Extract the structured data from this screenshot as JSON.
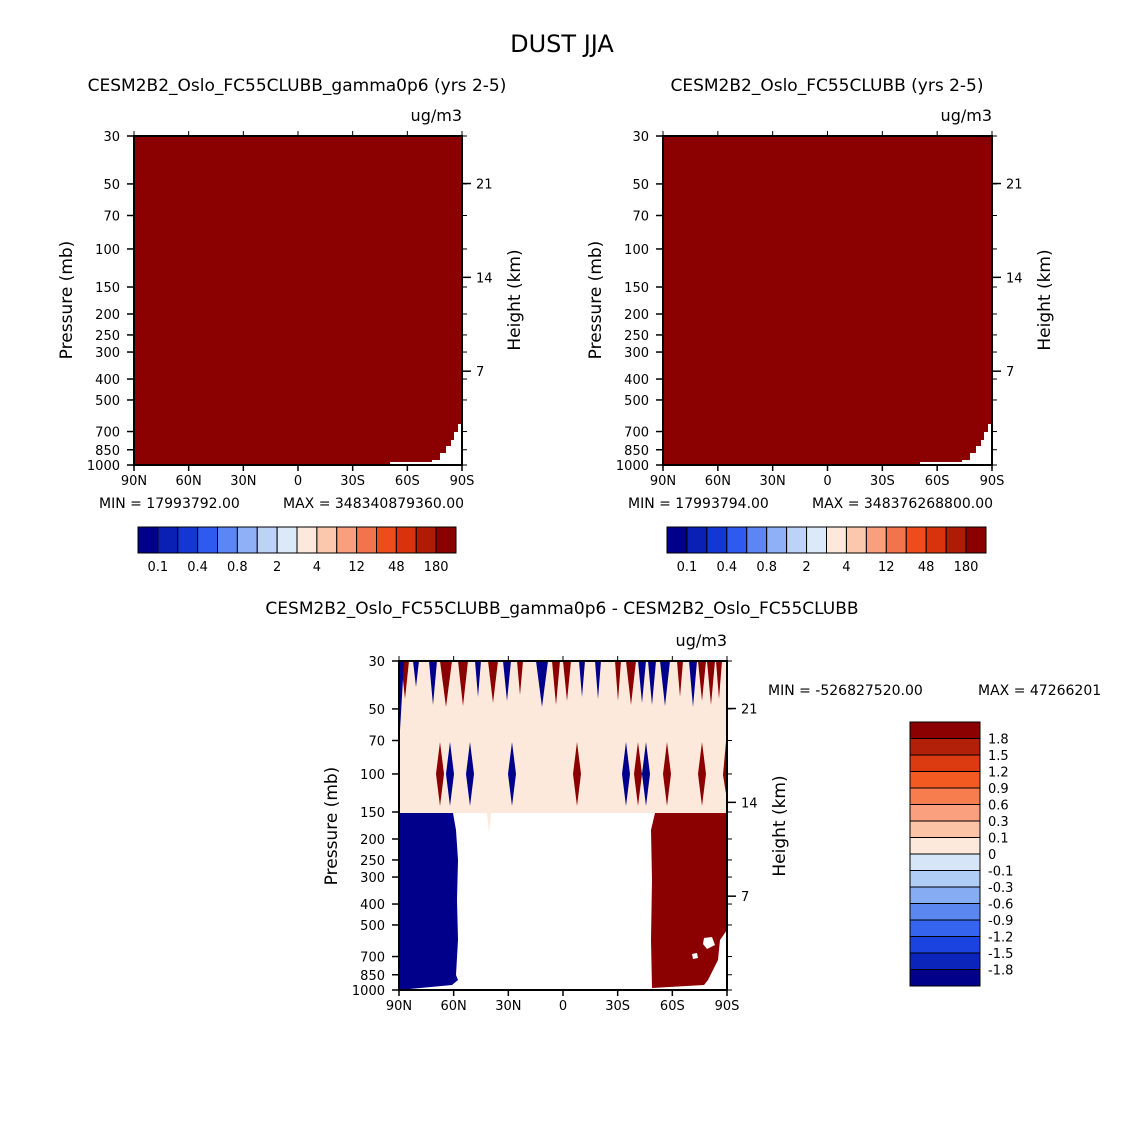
{
  "figure": {
    "title": "DUST JJA"
  },
  "chart_data": [
    {
      "type": "heatmap",
      "title": "CESM2B2_Oslo_FC55CLUBB_gamma0p6 (yrs 2-5)",
      "units": "ug/m3",
      "xlabel": "",
      "ylabel": "Pressure (mb)",
      "ylabel_right": "Height (km)",
      "x_ticks": [
        "90N",
        "60N",
        "30N",
        "0",
        "30S",
        "60S",
        "90S"
      ],
      "y_ticks": [
        30,
        50,
        70,
        100,
        150,
        200,
        250,
        300,
        400,
        500,
        700,
        850,
        1000
      ],
      "height_ticks": [
        21,
        14,
        7
      ],
      "ylim": [
        30,
        1000
      ],
      "xlim": [
        90,
        -90
      ],
      "min_text": "MIN = 17993792.00",
      "max_text": "MAX = 348340879360.00",
      "field_color": "#8b0000",
      "colorbar": {
        "colors": [
          "#00008b",
          "#0a1fb4",
          "#1437d4",
          "#2f5af0",
          "#5d86f5",
          "#8fb0f7",
          "#bcd3f7",
          "#dce9f8",
          "#fde9db",
          "#fbc7ad",
          "#f8a07e",
          "#f2744d",
          "#ef4c1d",
          "#d9330d",
          "#ae1c06",
          "#8b0000"
        ],
        "labels": [
          "0.1",
          "0.4",
          "0.8",
          "2",
          "4",
          "12",
          "48",
          "180"
        ]
      }
    },
    {
      "type": "heatmap",
      "title": "CESM2B2_Oslo_FC55CLUBB (yrs 2-5)",
      "units": "ug/m3",
      "xlabel": "",
      "ylabel": "Pressure (mb)",
      "ylabel_right": "Height (km)",
      "x_ticks": [
        "90N",
        "60N",
        "30N",
        "0",
        "30S",
        "60S",
        "90S"
      ],
      "y_ticks": [
        30,
        50,
        70,
        100,
        150,
        200,
        250,
        300,
        400,
        500,
        700,
        850,
        1000
      ],
      "height_ticks": [
        21,
        14,
        7
      ],
      "ylim": [
        30,
        1000
      ],
      "xlim": [
        90,
        -90
      ],
      "min_text": "MIN = 17993794.00",
      "max_text": "MAX = 348376268800.00",
      "field_color": "#8b0000",
      "colorbar": {
        "colors": [
          "#00008b",
          "#0a1fb4",
          "#1437d4",
          "#2f5af0",
          "#5d86f5",
          "#8fb0f7",
          "#bcd3f7",
          "#dce9f8",
          "#fde9db",
          "#fbc7ad",
          "#f8a07e",
          "#f2744d",
          "#ef4c1d",
          "#d9330d",
          "#ae1c06",
          "#8b0000"
        ],
        "labels": [
          "0.1",
          "0.4",
          "0.8",
          "2",
          "4",
          "12",
          "48",
          "180"
        ]
      }
    },
    {
      "type": "heatmap",
      "title": "CESM2B2_Oslo_FC55CLUBB_gamma0p6 - CESM2B2_Oslo_FC55CLUBB",
      "units": "ug/m3",
      "xlabel": "",
      "ylabel": "Pressure (mb)",
      "ylabel_right": "Height (km)",
      "x_ticks": [
        "90N",
        "60N",
        "30N",
        "0",
        "30S",
        "60S",
        "90S"
      ],
      "y_ticks": [
        30,
        50,
        70,
        100,
        150,
        200,
        250,
        300,
        400,
        500,
        700,
        850,
        1000
      ],
      "height_ticks": [
        21,
        14,
        7
      ],
      "ylim": [
        30,
        1000
      ],
      "xlim": [
        90,
        -90
      ],
      "min_text": "MIN = -526827520.00",
      "max_text": "MAX = 47266201",
      "regions": {
        "upper_band_color": "#fde9db",
        "lower_north_color": "#00008b",
        "lower_south_color": "#8b0000",
        "north_edge_lat": 60,
        "south_edge_lat": -50,
        "band_bottom_mb": 150
      },
      "colorbar": {
        "colors": [
          "#8b0000",
          "#b2200a",
          "#dc3a10",
          "#f25a22",
          "#f77d4e",
          "#faa07e",
          "#fbc4a6",
          "#fde9db",
          "#d6e6f8",
          "#b0cdf6",
          "#86adf3",
          "#5a87f0",
          "#3564ee",
          "#1a43e0",
          "#0b25bb",
          "#00008b"
        ],
        "labels": [
          "1.8",
          "1.5",
          "1.2",
          "0.9",
          "0.6",
          "0.3",
          "0.1",
          "0",
          "-0.1",
          "-0.3",
          "-0.6",
          "-0.9",
          "-1.2",
          "-1.5",
          "-1.8"
        ]
      }
    }
  ]
}
